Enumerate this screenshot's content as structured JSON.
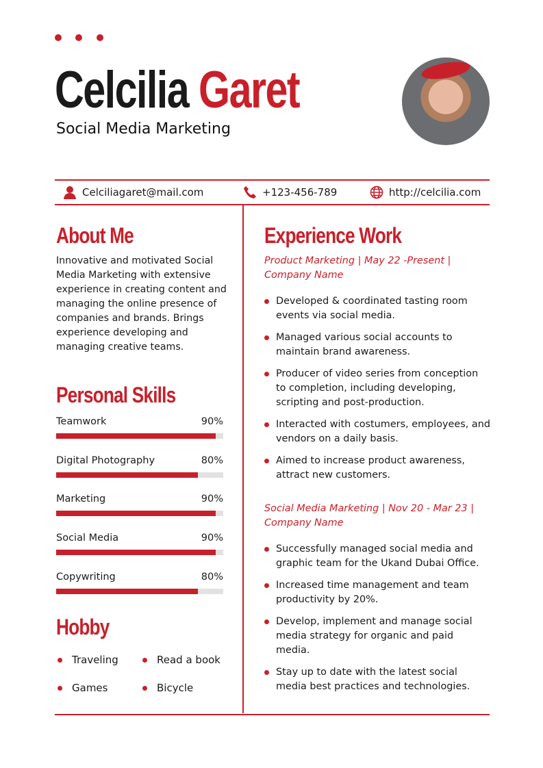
{
  "header": {
    "first_name": "Celcilia",
    "last_name": "Garet",
    "title": "Social Media Marketing"
  },
  "colors": {
    "accent": "#c8202a"
  },
  "contact": [
    {
      "icon": "user-icon",
      "text": "Celciliagaret@mail.com"
    },
    {
      "icon": "phone-icon",
      "text": "+123-456-789"
    },
    {
      "icon": "globe-icon",
      "text": "http://celcilia.com"
    }
  ],
  "about": {
    "heading": "About Me",
    "text": "Innovative and motivated Social Media Marketing with extensive experience in creating content and managing the online presence of companies and brands. Brings experience developing and managing creative teams."
  },
  "skills": {
    "heading": "Personal Skills",
    "items": [
      {
        "name": "Teamwork",
        "label": "90%",
        "value": 90
      },
      {
        "name": "Digital Photography",
        "label": "80%",
        "value": 80
      },
      {
        "name": "Marketing",
        "label": "90%",
        "value": 90
      },
      {
        "name": "Social Media",
        "label": "90%",
        "value": 90
      },
      {
        "name": "Copywriting",
        "label": "80%",
        "value": 80
      }
    ]
  },
  "hobby": {
    "heading": "Hobby",
    "items": [
      "Traveling",
      "Read a book",
      "Games",
      "Bicycle"
    ]
  },
  "experience": {
    "heading": "Experience Work",
    "jobs": [
      {
        "title": "Product Marketing | May 22 -Present | Company Name",
        "bullets": [
          "Developed & coordinated tasting room events via social media.",
          "Managed various social accounts to maintain brand awareness.",
          "Producer of video series from conception to completion, including developing, scripting and post-production.",
          "Interacted with costumers, employees, and vendors on a daily basis.",
          "Aimed to increase product awareness, attract new customers."
        ]
      },
      {
        "title": "Social Media Marketing | Nov 20 - Mar 23 | Company Name",
        "bullets": [
          "Successfully managed social media and graphic team for the Ukand Dubai Office.",
          "Increased time management and team productivity by 20%.",
          "Develop, implement and manage social media strategy for organic and paid media.",
          "Stay up to date with the latest social media best practices and technologies."
        ]
      }
    ]
  }
}
